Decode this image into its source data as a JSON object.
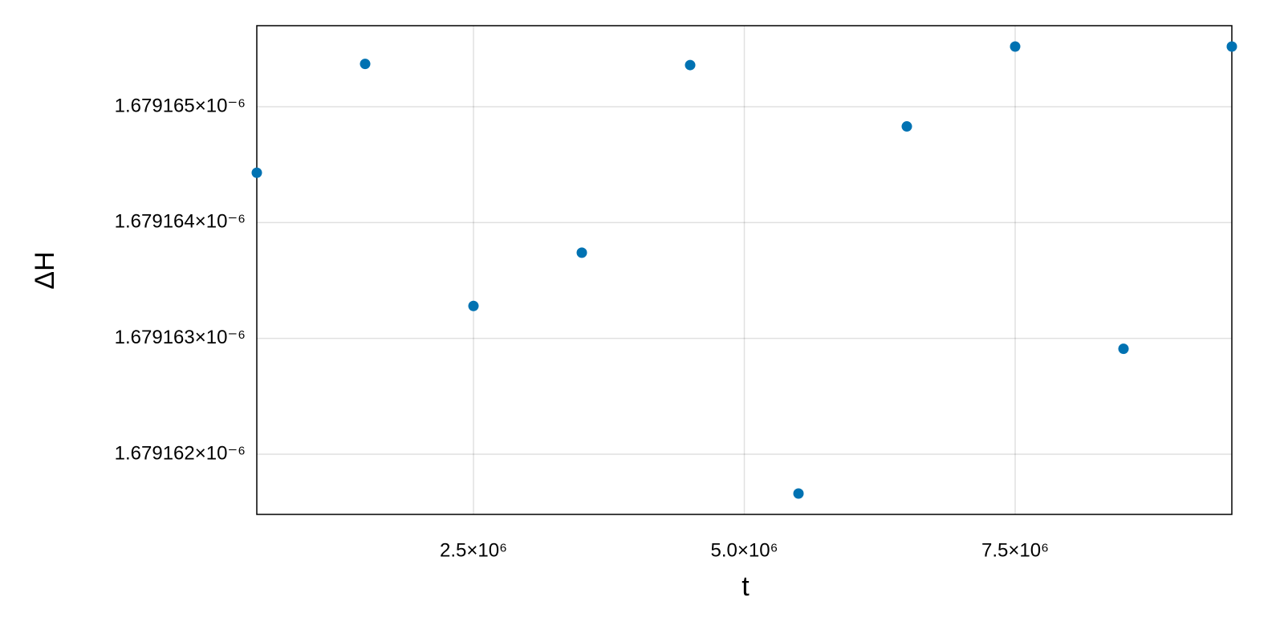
{
  "chart_data": {
    "type": "scatter",
    "x_label": "t",
    "y_label": "ΔH",
    "x": [
      500000,
      1500000,
      2500000,
      3500000,
      4500000,
      5500000,
      6500000,
      7500000,
      8500000,
      9500000
    ],
    "values": [
      1.67916443e-06,
      1.67916537e-06,
      1.67916328e-06,
      1.67916374e-06,
      1.67916536e-06,
      1.67916166e-06,
      1.67916483e-06,
      1.67916552e-06,
      1.67916291e-06,
      1.67916552e-06
    ],
    "color": "#0072b2",
    "xlim": [
      500000,
      9500000
    ],
    "ylim": [
      1.67916148e-06,
      1.6791657e-06
    ],
    "xticks": [
      {
        "value": 2500000,
        "label": "2.5×10⁶"
      },
      {
        "value": 5000000,
        "label": "5.0×10⁶"
      },
      {
        "value": 7500000,
        "label": "7.5×10⁶"
      }
    ],
    "yticks": [
      {
        "value": 1.679162e-06,
        "label": "1.679162×10⁻⁶"
      },
      {
        "value": 1.679163e-06,
        "label": "1.679163×10⁻⁶"
      },
      {
        "value": 1.679164e-06,
        "label": "1.679164×10⁻⁶"
      },
      {
        "value": 1.679165e-06,
        "label": "1.679165×10⁻⁶"
      }
    ],
    "grid": true
  }
}
